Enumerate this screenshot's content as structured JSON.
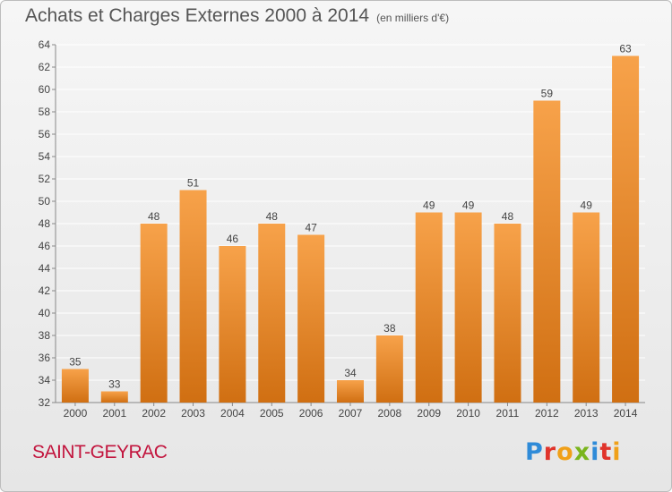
{
  "title": "Achats et Charges Externes 2000 à 2014",
  "unit_label": "(en milliers d'€)",
  "commune": "SAINT-GEYRAC",
  "logo": {
    "text": "Proxiti",
    "letter_colors": [
      "#2f8bd8",
      "#e0342b",
      "#f0a019",
      "#7ab51d",
      "#2f8bd8",
      "#e0342b",
      "#f0a019"
    ]
  },
  "colors": {
    "bar_top": "#f7a24a",
    "bar_bottom": "#d06f12",
    "grid": "#ffffff",
    "axis": "#888888",
    "text": "#444444"
  },
  "chart_data": {
    "type": "bar",
    "categories": [
      "2000",
      "2001",
      "2002",
      "2003",
      "2004",
      "2005",
      "2006",
      "2007",
      "2008",
      "2009",
      "2010",
      "2011",
      "2012",
      "2013",
      "2014"
    ],
    "values": [
      35,
      33,
      48,
      51,
      46,
      48,
      47,
      34,
      38,
      49,
      49,
      48,
      59,
      49,
      63
    ],
    "ylim": [
      32,
      64
    ],
    "yticks": [
      32,
      34,
      36,
      38,
      40,
      42,
      44,
      46,
      48,
      50,
      52,
      54,
      56,
      58,
      60,
      62,
      64
    ],
    "data_labels": [
      "35",
      "33",
      "48",
      "51",
      "46",
      "48",
      "47",
      "34",
      "38",
      "49",
      "49",
      "48",
      "59",
      "49",
      "63"
    ],
    "grid": true
  }
}
